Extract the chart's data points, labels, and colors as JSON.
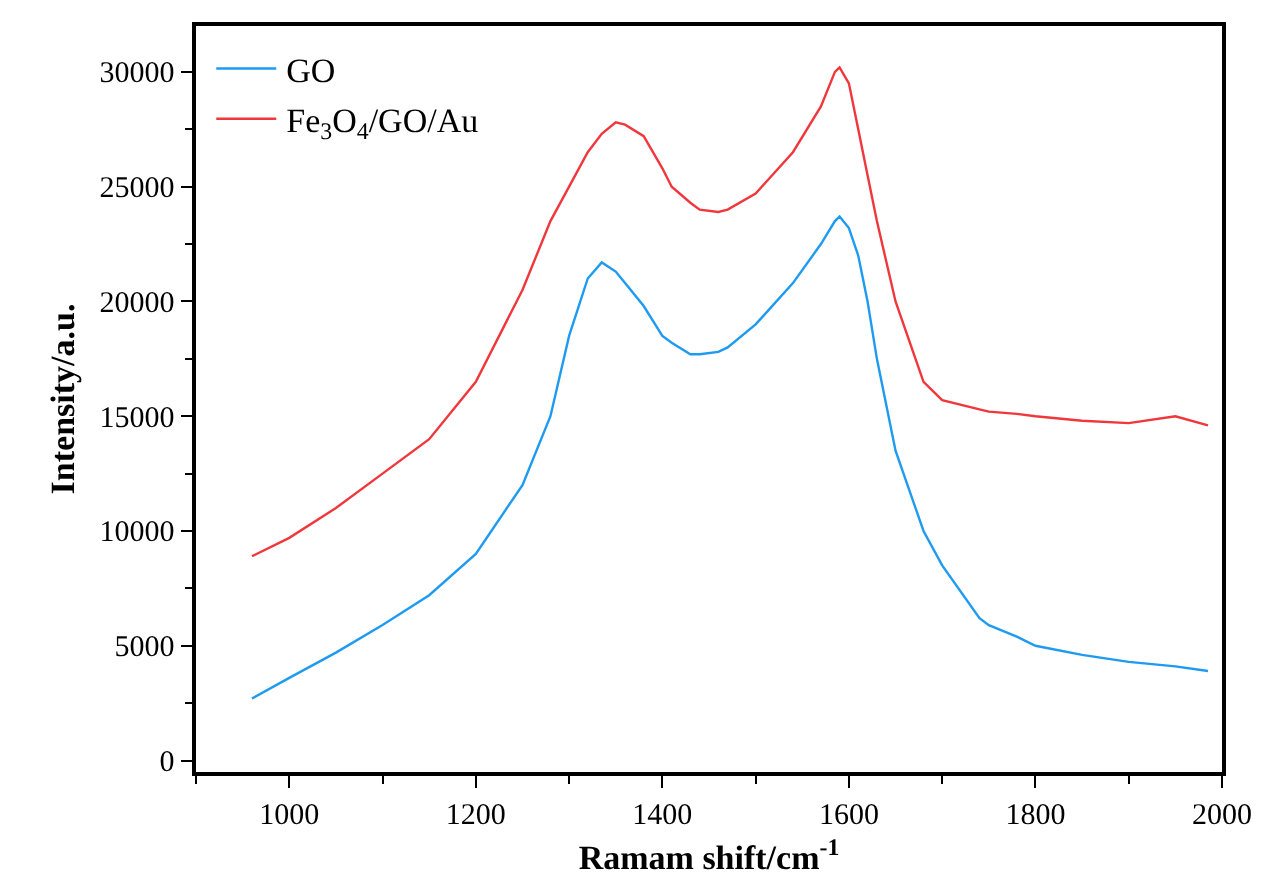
{
  "chart_data": {
    "type": "line",
    "xlabel": "Ramam shift/cm$^{-1}$",
    "ylabel": "Intensity/a.u.",
    "xlim": [
      900,
      2000
    ],
    "xticks": [
      1000,
      1200,
      1400,
      1600,
      1800,
      2000
    ],
    "ylim": [
      -500,
      32000
    ],
    "yticks": [
      0,
      5000,
      10000,
      15000,
      20000,
      25000,
      30000
    ],
    "grid": false,
    "legend": "top left",
    "marker": "none",
    "line_style": "solid",
    "x": [
      960,
      1000,
      1050,
      1100,
      1150,
      1200,
      1250,
      1280,
      1300,
      1320,
      1335,
      1350,
      1360,
      1380,
      1400,
      1410,
      1430,
      1440,
      1460,
      1470,
      1500,
      1540,
      1570,
      1585,
      1590,
      1600,
      1610,
      1620,
      1630,
      1650,
      1680,
      1700,
      1740,
      1750,
      1780,
      1800,
      1850,
      1900,
      1950,
      1985
    ],
    "series": [
      {
        "name": "GO",
        "color": "#1e9bf0",
        "values": [
          2700,
          3600,
          4700,
          5900,
          7200,
          9000,
          12000,
          15000,
          18500,
          21000,
          21700,
          21300,
          20800,
          19800,
          18500,
          18200,
          17700,
          17700,
          17800,
          18000,
          19000,
          20800,
          22500,
          23500,
          23700,
          23200,
          22000,
          20000,
          17500,
          13500,
          10000,
          8500,
          6200,
          5900,
          5400,
          5000,
          4600,
          4300,
          4100,
          3900
        ]
      },
      {
        "name": "Fe$_{3}$O$_{4}$/GO/Au",
        "color": "#f0373c",
        "values": [
          8900,
          9700,
          11000,
          12500,
          14000,
          16500,
          20500,
          23500,
          25000,
          26500,
          27300,
          27800,
          27700,
          27200,
          25800,
          25000,
          24300,
          24000,
          23900,
          24000,
          24700,
          26500,
          28500,
          30000,
          30200,
          29500,
          27500,
          25500,
          23500,
          20000,
          16500,
          15700,
          15300,
          15200,
          15100,
          15000,
          14800,
          14700,
          15000,
          14600
        ]
      }
    ]
  }
}
